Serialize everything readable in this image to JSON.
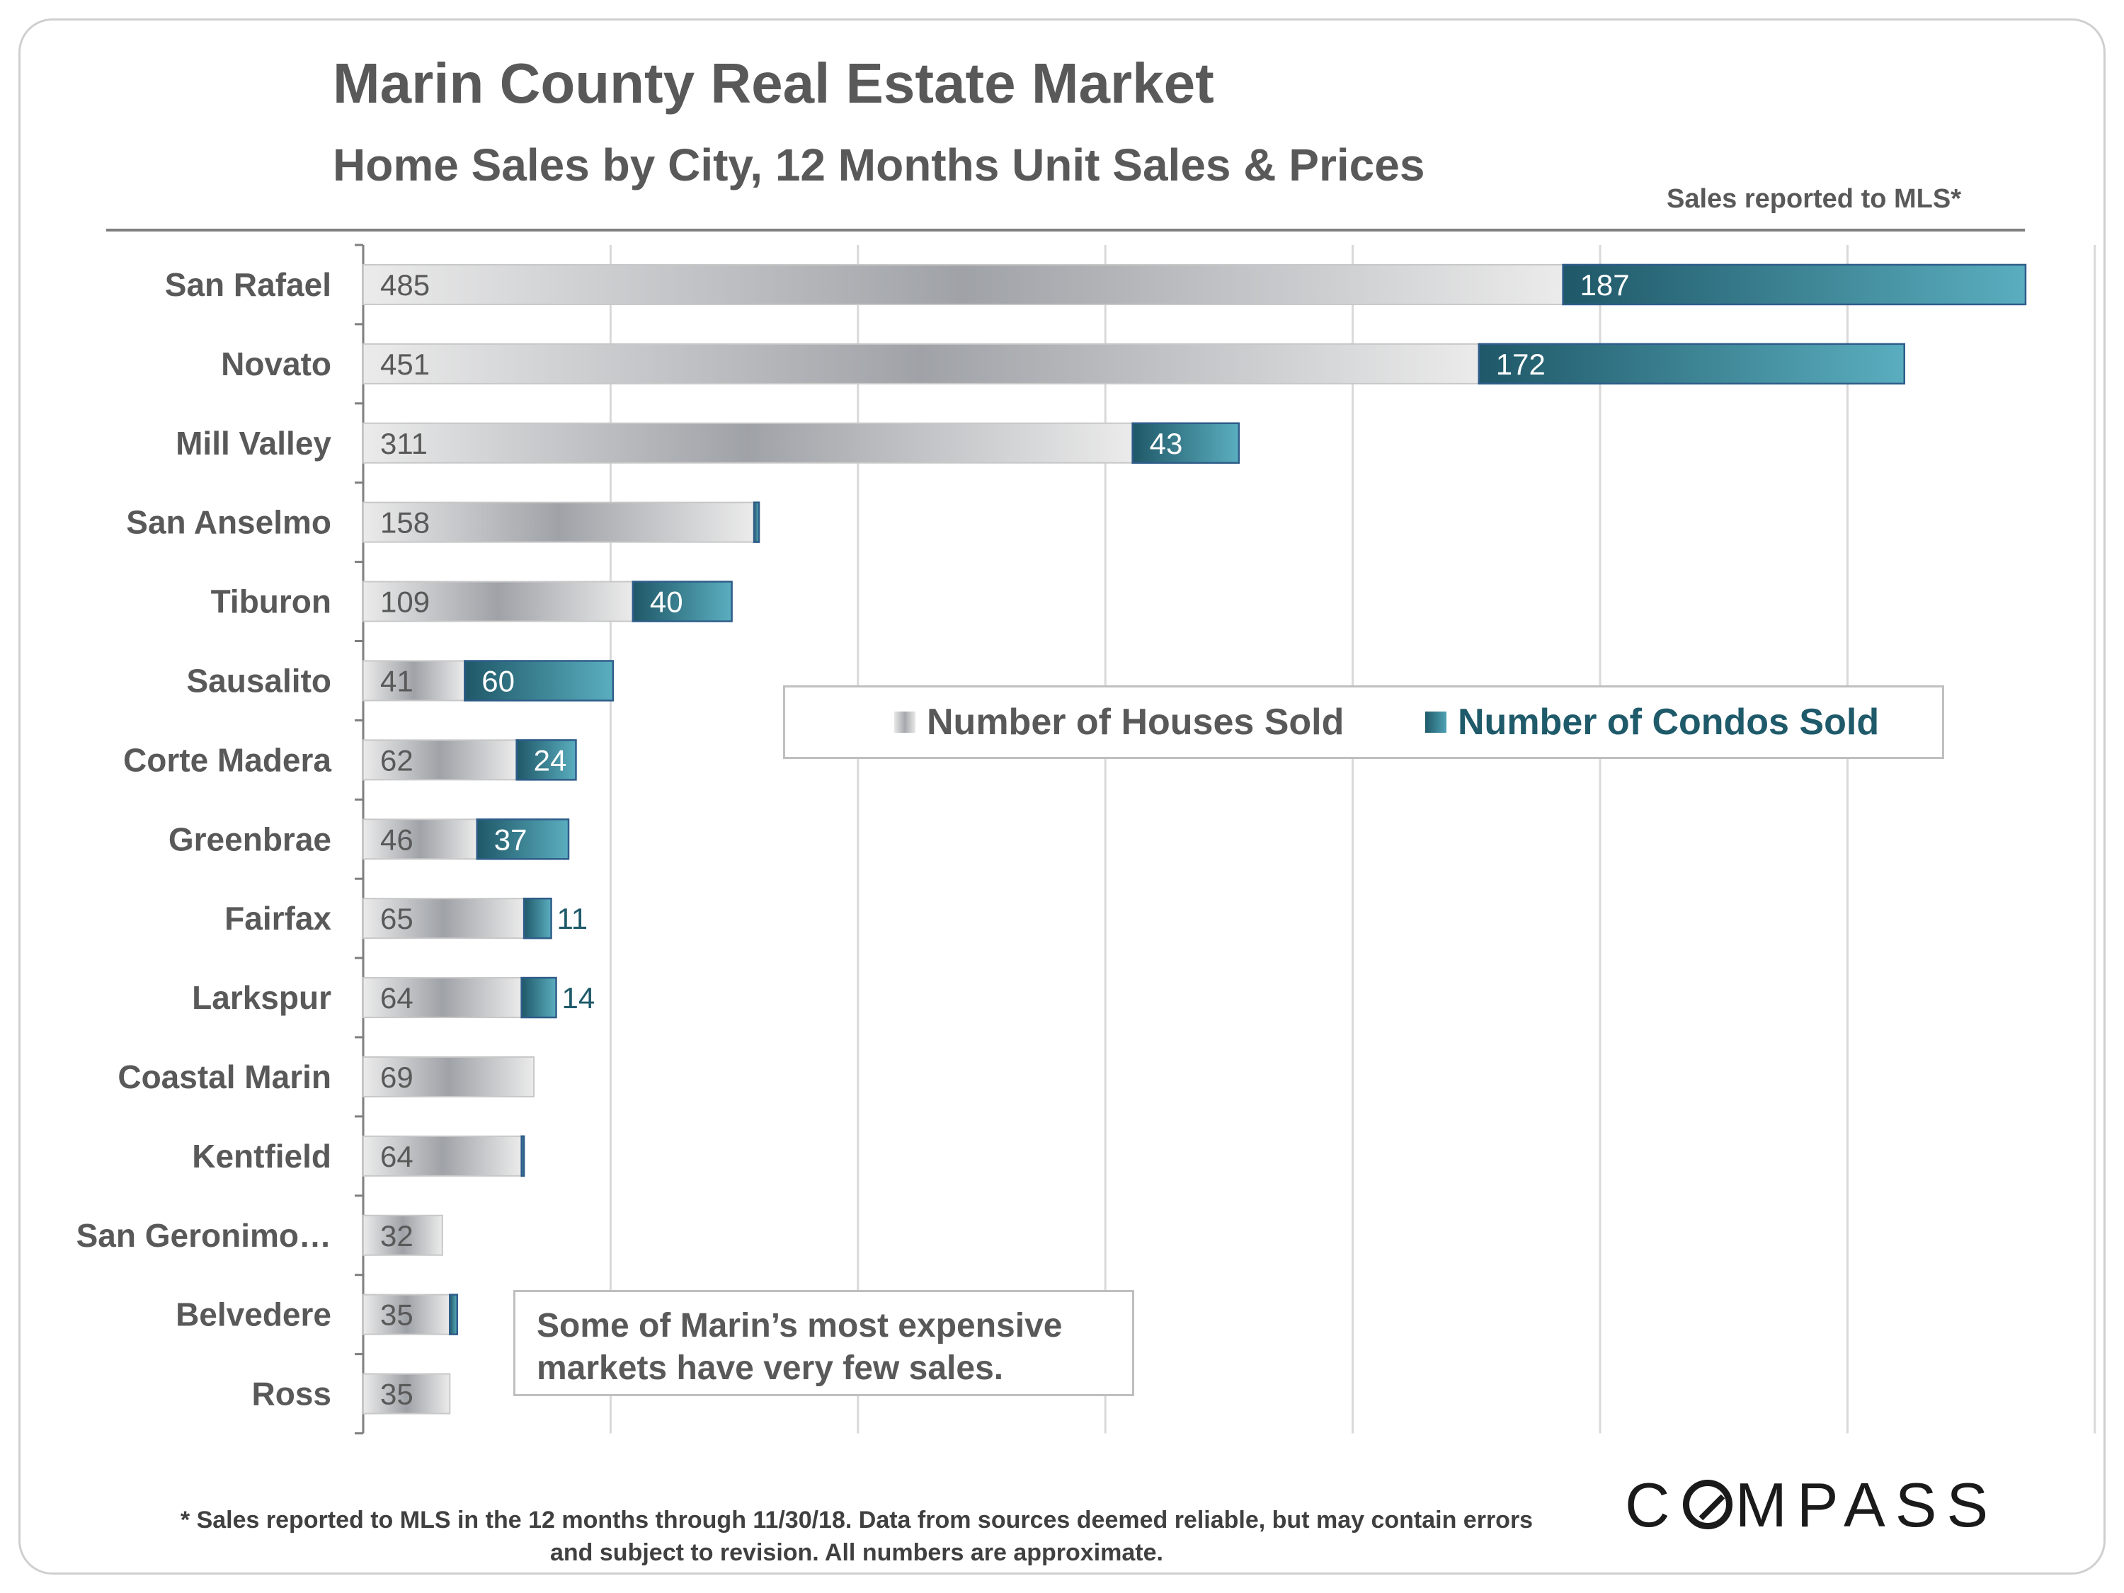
{
  "header": {
    "title": "Marin County Real Estate Market",
    "subtitle": "Home Sales by City, 12 Months Unit Sales & Prices",
    "source_note": "Sales reported to MLS*"
  },
  "annotation": {
    "line1": "Some of Marin’s most expensive",
    "line2": "markets have very few sales."
  },
  "footnote": {
    "line1": "* Sales reported to MLS in the 12 months through 11/30/18. Data from sources deemed reliable, but may contain errors",
    "line2": "and subject to revision. All numbers are approximate."
  },
  "logo": {
    "text_before": "C",
    "text_after": "MPASS",
    "full": "COMPASS"
  },
  "chart_data": {
    "type": "bar",
    "orientation": "horizontal",
    "stacked": true,
    "categories": [
      "San Rafael",
      "Novato",
      "Mill Valley",
      "San Anselmo",
      "Tiburon",
      "Sausalito",
      "Corte Madera",
      "Greenbrae",
      "Fairfax",
      "Larkspur",
      "Coastal Marin",
      "Kentfield",
      "San Geronimo…",
      "Belvedere",
      "Ross"
    ],
    "series": [
      {
        "name": "Number of Houses Sold",
        "color": "#a6a8ad",
        "values": [
          485,
          451,
          311,
          158,
          109,
          41,
          62,
          46,
          65,
          64,
          69,
          64,
          32,
          35,
          35
        ]
      },
      {
        "name": "Number of Condos Sold",
        "color": "#3a8799",
        "values": [
          187,
          172,
          43,
          2,
          40,
          60,
          24,
          37,
          11,
          14,
          0,
          1,
          0,
          3,
          0
        ]
      }
    ],
    "condo_labels_shown": [
      true,
      true,
      true,
      false,
      true,
      true,
      true,
      true,
      true,
      true,
      false,
      false,
      false,
      false,
      false
    ],
    "xlim": [
      0,
      700
    ],
    "grid": true,
    "legend": "center-right"
  },
  "colors": {
    "text": "#595959",
    "condo_dark": "#1f5a6a",
    "condo_light": "#4fa2b4",
    "house_light": "#e6e6e6",
    "house_dark": "#a0a3a8",
    "grid": "#d9d9d9"
  }
}
